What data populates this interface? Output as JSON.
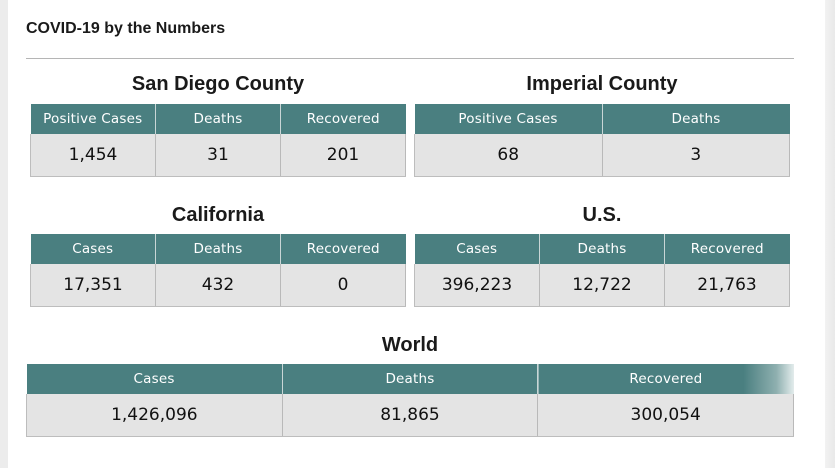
{
  "page_title": "COVID-19 by the Numbers",
  "sections": {
    "san_diego": {
      "title": "San Diego County",
      "headers": [
        "Positive Cases",
        "Deaths",
        "Recovered"
      ],
      "values": [
        "1,454",
        "31",
        "201"
      ]
    },
    "imperial": {
      "title": "Imperial County",
      "headers": [
        "Positive Cases",
        "Deaths"
      ],
      "values": [
        "68",
        "3"
      ]
    },
    "california": {
      "title": "California",
      "headers": [
        "Cases",
        "Deaths",
        "Recovered"
      ],
      "values": [
        "17,351",
        "432",
        "0"
      ]
    },
    "us": {
      "title": "U.S.",
      "headers": [
        "Cases",
        "Deaths",
        "Recovered"
      ],
      "values": [
        "396,223",
        "12,722",
        "21,763"
      ]
    },
    "world": {
      "title": "World",
      "headers": [
        "Cases",
        "Deaths",
        "Recovered"
      ],
      "values": [
        "1,426,096",
        "81,865",
        "300,054"
      ]
    }
  },
  "colors": {
    "header_bg": "#4a7f80",
    "cell_bg": "#e4e4e4"
  }
}
